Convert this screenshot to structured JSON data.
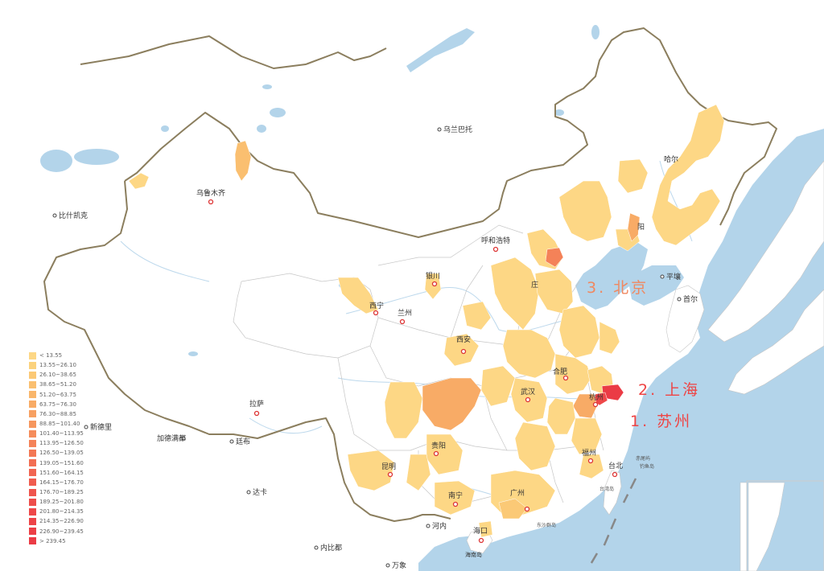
{
  "map": {
    "cities": [
      {
        "id": "wulumuqi",
        "name": "乌鲁木齐"
      },
      {
        "id": "ulaanbaatar",
        "name": "乌兰巴托"
      },
      {
        "id": "bishkek",
        "name": "比什凯克"
      },
      {
        "id": "hohhot",
        "name": "呼和浩特"
      },
      {
        "id": "yinchuan",
        "name": "银川"
      },
      {
        "id": "lanzhou",
        "name": "兰州"
      },
      {
        "id": "xian",
        "name": "西安"
      },
      {
        "id": "xining",
        "name": "西宁"
      },
      {
        "id": "lhasa",
        "name": "拉萨"
      },
      {
        "id": "wuhan",
        "name": "武汉"
      },
      {
        "id": "hefei",
        "name": "合肥"
      },
      {
        "id": "hangzhou",
        "name": "杭州"
      },
      {
        "id": "fuzhou",
        "name": "福州"
      },
      {
        "id": "taipei",
        "name": "台北"
      },
      {
        "id": "guangzhou",
        "name": "广州"
      },
      {
        "id": "haikou",
        "name": "海口"
      },
      {
        "id": "nanning",
        "name": "南宁"
      },
      {
        "id": "kunming",
        "name": "昆明"
      },
      {
        "id": "guiyang",
        "name": "贵阳"
      },
      {
        "id": "pyongyang",
        "name": "平壤"
      },
      {
        "id": "seoul",
        "name": "首尔"
      },
      {
        "id": "newdelhi",
        "name": "新德里"
      },
      {
        "id": "kathmandu",
        "name": "加德满都"
      },
      {
        "id": "dhaka",
        "name": "达卡"
      },
      {
        "id": "thimphu",
        "name": "廷布"
      },
      {
        "id": "hanoi",
        "name": "河内"
      },
      {
        "id": "naypyidaw",
        "name": "内比都"
      },
      {
        "id": "vientiane",
        "name": "万象"
      },
      {
        "id": "harbin",
        "name": "哈尔"
      },
      {
        "id": "shenyang",
        "name": "阳"
      },
      {
        "id": "shijiazhuang",
        "name": "庄"
      }
    ],
    "sea_labels": [
      "赤尾屿",
      "钓鱼岛",
      "台湾岛",
      "东沙群岛",
      "海南岛"
    ],
    "rankings": [
      {
        "label": "1. 苏州",
        "color": "#ee4444"
      },
      {
        "label": "2. 上海",
        "color": "#ee4444"
      },
      {
        "label": "3. 北京",
        "color": "#f08860"
      }
    ]
  },
  "legend": {
    "items": [
      {
        "label": "< 13.55",
        "color": "#fdd785"
      },
      {
        "label": "13.55~26.10",
        "color": "#fbd27d"
      },
      {
        "label": "26.10~38.65",
        "color": "#fbc976"
      },
      {
        "label": "38.65~51.20",
        "color": "#fabf70"
      },
      {
        "label": "51.20~63.75",
        "color": "#f9b66b"
      },
      {
        "label": "63.75~76.30",
        "color": "#f8ab66"
      },
      {
        "label": "76.30~88.85",
        "color": "#f7a062"
      },
      {
        "label": "88.85~101.40",
        "color": "#f6965e"
      },
      {
        "label": "101.40~113.95",
        "color": "#f58c5b"
      },
      {
        "label": "113.95~126.50",
        "color": "#f48258"
      },
      {
        "label": "126.50~139.05",
        "color": "#f37855"
      },
      {
        "label": "139.05~151.60",
        "color": "#f26e53"
      },
      {
        "label": "151.60~164.15",
        "color": "#f16551"
      },
      {
        "label": "164.15~176.70",
        "color": "#f05d4f"
      },
      {
        "label": "176.70~189.25",
        "color": "#ef554d"
      },
      {
        "label": "189.25~201.80",
        "color": "#ee4e4b"
      },
      {
        "label": "201.80~214.35",
        "color": "#ee4849"
      },
      {
        "label": "214.35~226.90",
        "color": "#ed4347"
      },
      {
        "label": "226.90~239.45",
        "color": "#ec3f46"
      },
      {
        "label": "> 239.45",
        "color": "#eb3b45"
      }
    ]
  },
  "colors": {
    "sea": "#b3d4ea",
    "land": "#ffffff",
    "border": "#8b7e5e",
    "province_border": "#c6c6c6",
    "lake": "#b3d4ea"
  }
}
